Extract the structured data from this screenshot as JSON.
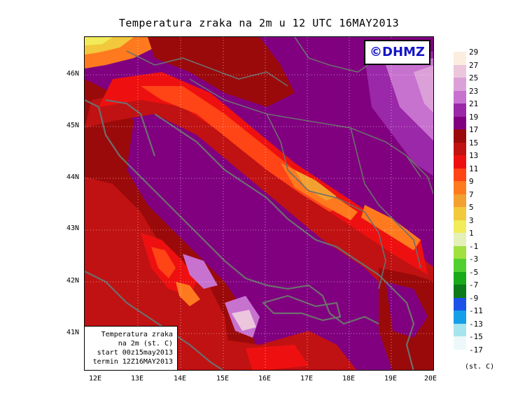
{
  "title": "Temperatura zraka na 2m u 12 UTC 16MAY2013",
  "logo": "©DHMZ",
  "map": {
    "lat_ticks": [
      "46N",
      "45N",
      "44N",
      "43N",
      "42N",
      "41N"
    ],
    "lon_ticks": [
      "12E",
      "13E",
      "14E",
      "15E",
      "16E",
      "17E",
      "18E",
      "19E",
      "20E"
    ]
  },
  "info_box": {
    "line1": "Temperatura zraka",
    "line2": "na 2m (st. C)",
    "line3": "start 00z15may2013",
    "line4": "termin 12Z16MAY2013"
  },
  "legend": {
    "unit": "(st. C)",
    "labels": [
      "29",
      "27",
      "25",
      "23",
      "21",
      "19",
      "17",
      "15",
      "13",
      "11",
      "9",
      "7",
      "5",
      "3",
      "1",
      "-1",
      "-3",
      "-5",
      "-7",
      "-9",
      "-11",
      "-13",
      "-15",
      "-17"
    ],
    "colors": [
      "#fbeee0",
      "#ecc6dc",
      "#dca0d8",
      "#c872d0",
      "#9a28a8",
      "#800080",
      "#9b0a0a",
      "#c01212",
      "#ee1010",
      "#ff4416",
      "#ff7a1e",
      "#f2a030",
      "#f2c83c",
      "#f2ec5a",
      "#e4f0b8",
      "#a0e040",
      "#50d030",
      "#18aa18",
      "#0c7a18",
      "#1c52e8",
      "#14a0e8",
      "#a6e4ee",
      "#eef8fa"
    ]
  }
}
